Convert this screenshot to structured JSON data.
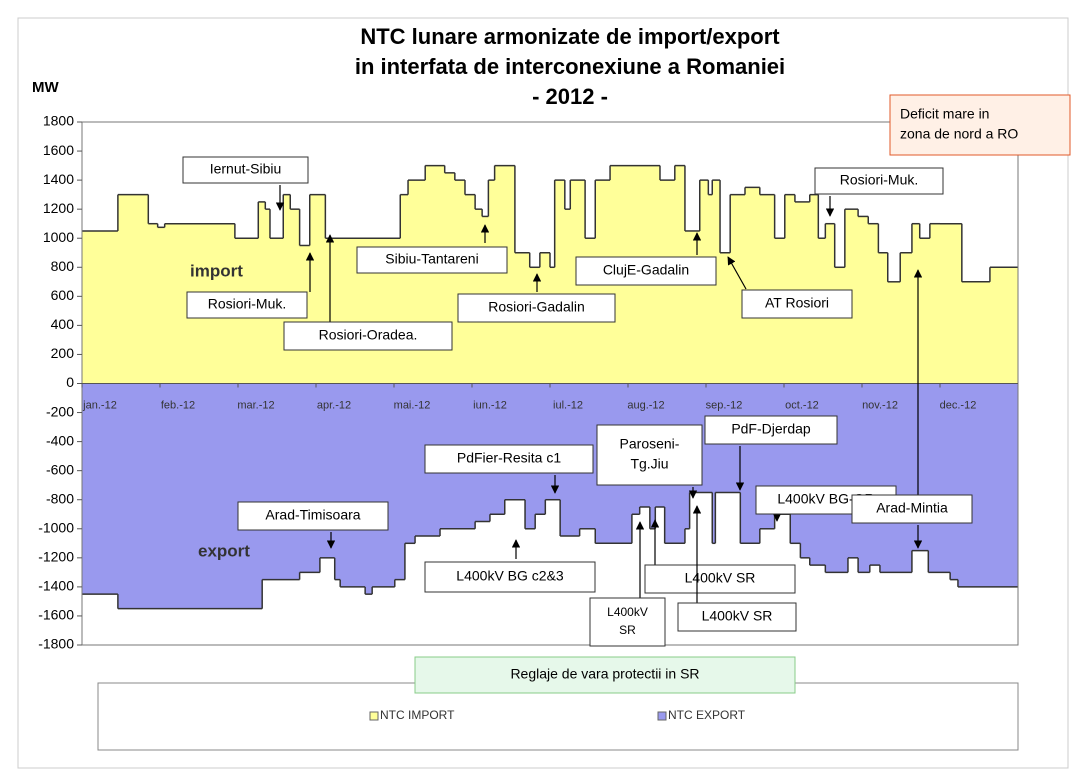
{
  "chart_data": {
    "type": "step-area",
    "title": [
      "NTC lunare armonizate de import/export",
      "in interfata de interconexiune a Romaniei",
      "- 2012 -"
    ],
    "y_axis_label": "MW",
    "region_labels": [
      "import",
      "export"
    ],
    "xlim": [
      0,
      12
    ],
    "xticks": [
      {
        "value": 0,
        "label": "jan.-12"
      },
      {
        "value": 1,
        "label": "feb.-12"
      },
      {
        "value": 2,
        "label": "mar.-12"
      },
      {
        "value": 3,
        "label": "apr.-12"
      },
      {
        "value": 4,
        "label": "mai.-12"
      },
      {
        "value": 5,
        "label": "iun.-12"
      },
      {
        "value": 6,
        "label": "iul.-12"
      },
      {
        "value": 7,
        "label": "aug.-12"
      },
      {
        "value": 8,
        "label": "sep.-12"
      },
      {
        "value": 9,
        "label": "oct.-12"
      },
      {
        "value": 10,
        "label": "nov.-12"
      },
      {
        "value": 11,
        "label": "dec.-12"
      }
    ],
    "ylim": [
      -1800,
      1800
    ],
    "yticks": [
      1800,
      1600,
      1400,
      1200,
      1000,
      800,
      600,
      400,
      200,
      0,
      -200,
      -400,
      -600,
      -800,
      -1000,
      -1200,
      -1400,
      -1600,
      -1800
    ],
    "series": [
      {
        "name": "NTC IMPORT",
        "color": "#ffff99",
        "x": [
          0,
          0.46,
          0.85,
          0.97,
          1.06,
          1.96,
          2.26,
          2.35,
          2.41,
          2.58,
          2.67,
          2.79,
          2.92,
          3.12,
          4.08,
          4.18,
          4.4,
          4.65,
          4.78,
          4.91,
          5.04,
          5.13,
          5.21,
          5.29,
          5.55,
          5.74,
          5.87,
          6.0,
          6.06,
          6.19,
          6.26,
          6.45,
          6.58,
          6.77,
          7.41,
          7.6,
          7.73,
          7.92,
          8.03,
          8.08,
          8.18,
          8.31,
          8.5,
          8.69,
          8.88,
          9.01,
          9.14,
          9.33,
          9.44,
          9.53,
          9.65,
          9.78,
          9.95,
          10.08,
          10.21,
          10.33,
          10.49,
          10.64,
          10.74,
          10.87,
          11.0,
          11.28,
          11.64
        ],
        "values": [
          1050,
          1300,
          1100,
          1075,
          1100,
          1000,
          1250,
          1200,
          1000,
          1300,
          1200,
          950,
          1300,
          1000,
          1300,
          1400,
          1500,
          1450,
          1400,
          1300,
          1200,
          1150,
          1400,
          1500,
          900,
          800,
          900,
          800,
          1400,
          1200,
          1400,
          1000,
          1400,
          1500,
          1400,
          1500,
          1050,
          1400,
          1300,
          1400,
          900,
          1300,
          1350,
          1300,
          1000,
          1300,
          1250,
          1300,
          1000,
          1100,
          800,
          1200,
          1150,
          1100,
          900,
          700,
          900,
          1100,
          1000,
          1100,
          1100,
          700,
          800
        ]
      },
      {
        "name": "NTC EXPORT",
        "color": "#9999ee",
        "x": [
          0,
          0.46,
          2.31,
          2.79,
          3.05,
          3.24,
          3.31,
          3.63,
          3.72,
          4.01,
          4.14,
          4.27,
          4.59,
          5.04,
          5.23,
          5.42,
          5.68,
          5.81,
          5.94,
          6.13,
          6.38,
          6.58,
          7.05,
          7.15,
          7.28,
          7.35,
          7.47,
          7.73,
          7.79,
          8.08,
          8.12,
          8.44,
          8.69,
          8.88,
          9.08,
          9.21,
          9.33,
          9.53,
          9.82,
          9.95,
          10.1,
          10.23,
          10.64,
          10.85,
          11.13,
          11.23
        ],
        "values": [
          -1450,
          -1550,
          -1350,
          -1300,
          -1200,
          -1350,
          -1400,
          -1450,
          -1400,
          -1350,
          -1100,
          -1050,
          -1000,
          -950,
          -900,
          -800,
          -1000,
          -900,
          -800,
          -1050,
          -1000,
          -1100,
          -900,
          -850,
          -1000,
          -850,
          -1100,
          -1000,
          -750,
          -1100,
          -750,
          -1100,
          -1000,
          -900,
          -1100,
          -1200,
          -1250,
          -1300,
          -1200,
          -1300,
          -1250,
          -1300,
          -1150,
          -1300,
          -1350,
          -1400
        ]
      }
    ],
    "annotations": [
      {
        "lines": [
          "Iernut-Sibiu"
        ]
      },
      {
        "lines": [
          "Rosiori-Muk."
        ]
      },
      {
        "lines": [
          "Rosiori-Oradea."
        ]
      },
      {
        "lines": [
          "Sibiu-Tantareni"
        ]
      },
      {
        "lines": [
          "Rosiori-Gadalin"
        ]
      },
      {
        "lines": [
          "ClujE-Gadalin"
        ]
      },
      {
        "lines": [
          "AT Rosiori"
        ]
      },
      {
        "lines": [
          "Rosiori-Muk."
        ]
      },
      {
        "lines": [
          "Deficit mare in",
          "zona de nord  a RO"
        ]
      },
      {
        "lines": [
          "Arad-Timisoara"
        ]
      },
      {
        "lines": [
          "PdFier-Resita c1"
        ]
      },
      {
        "lines": [
          "L400kV BG c2&3"
        ]
      },
      {
        "lines": [
          "Paroseni-",
          "Tg.Jiu"
        ]
      },
      {
        "lines": [
          "PdF-Djerdap"
        ]
      },
      {
        "lines": [
          "L400kV BG-GR"
        ]
      },
      {
        "lines": [
          "Arad-Mintia"
        ]
      },
      {
        "lines": [
          "L400kV",
          "SR"
        ]
      },
      {
        "lines": [
          "L400kV SR"
        ]
      },
      {
        "lines": [
          "L400kV SR"
        ]
      },
      {
        "lines": [
          "Reglaje de vara protectii in SR"
        ]
      }
    ]
  }
}
